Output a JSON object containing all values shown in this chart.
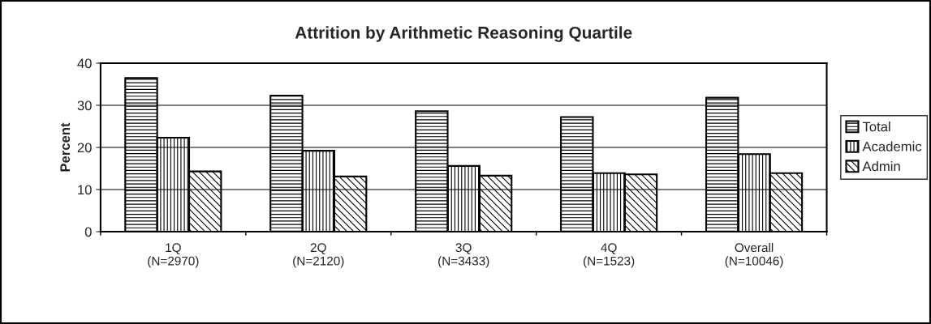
{
  "chart_data": {
    "type": "bar",
    "title": "Attrition by Arithmetic Reasoning Quartile",
    "ylabel": "Percent",
    "categories": [
      "1Q\n(N=2970)",
      "2Q\n(N=2120)",
      "3Q\n(N=3433)",
      "4Q\n(N=1523)",
      "Overall\n(N=10046)"
    ],
    "series": [
      {
        "name": "Total",
        "color": "#000000",
        "values": [
          36.5,
          32.3,
          28.6,
          27.2,
          31.8
        ]
      },
      {
        "name": "Academic",
        "color": "#000000",
        "values": [
          22.3,
          19.2,
          15.6,
          13.9,
          18.4
        ]
      },
      {
        "name": "Admin",
        "color": "#000000",
        "values": [
          14.3,
          13.1,
          13.3,
          13.6,
          13.9
        ]
      }
    ],
    "ylim": [
      0,
      40
    ],
    "yticks": [
      0,
      10,
      20,
      30,
      40
    ],
    "grid": "y",
    "legend": "right"
  }
}
